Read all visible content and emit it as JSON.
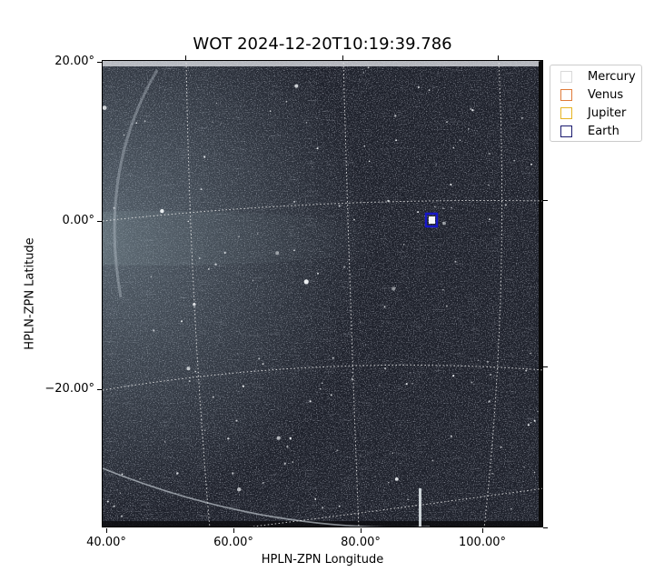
{
  "title": "WOT 2024-12-20T10:19:39.786",
  "axes": {
    "xlabel": "HPLN-ZPN Longitude",
    "ylabel": "HPLN-ZPN Latitude",
    "xticks": [
      "40.00°",
      "60.00°",
      "80.00°",
      "100.00°"
    ],
    "yticks": [
      "20.00°",
      "0.00°",
      "−20.00°"
    ]
  },
  "legend": [
    {
      "label": "Mercury",
      "color": "#d9d9d9"
    },
    {
      "label": "Venus",
      "color": "#e07b39"
    },
    {
      "label": "Jupiter",
      "color": "#e6b422"
    },
    {
      "label": "Earth",
      "color": "#1a1a6e"
    }
  ],
  "image": {
    "description_colors": {
      "background": "#1b1e27",
      "glow": "#a9c2c0",
      "grid": "#e8e8e8",
      "marker": "#1010c0"
    }
  }
}
